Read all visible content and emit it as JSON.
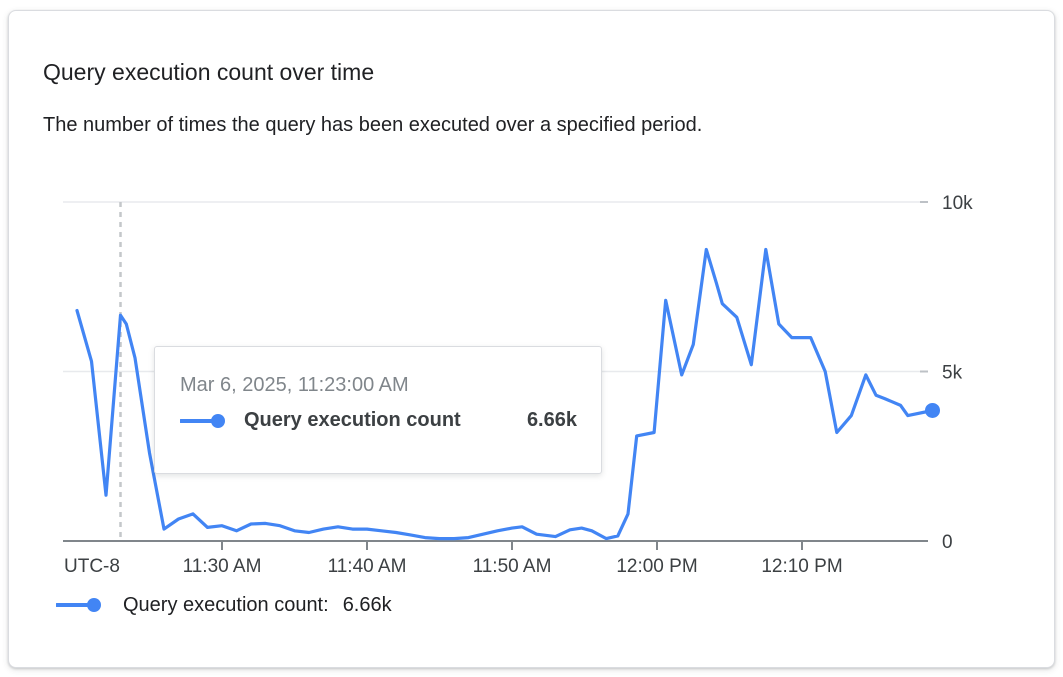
{
  "card": {
    "title": "Query execution count over time",
    "subtitle": "The number of times the query has been executed over a specified period."
  },
  "tooltip": {
    "date": "Mar 6, 2025, 11:23:00 AM",
    "series_label": "Query execution count",
    "value": "6.66k"
  },
  "legend": {
    "label": "Query execution count:",
    "value": "6.66k"
  },
  "colors": {
    "line": "#4285f4",
    "axis": "#80868b",
    "grid": "#e8eaed",
    "grid_end_tick": "#bdc1c6",
    "hover_line": "#c4c7ca",
    "axis_label": "#3c4043",
    "muted_text": "#80868b",
    "text": "#202124",
    "tooltip_border": "#dadce0"
  },
  "chart_data": {
    "type": "line",
    "title": "Query execution count over time",
    "xlabel": "",
    "ylabel": "",
    "x_axis": {
      "timezone_label": "UTC-8",
      "start_time": "11:20 AM",
      "minutes_span": 60,
      "ticks": [
        {
          "label": "11:30 AM",
          "minute": 10
        },
        {
          "label": "11:40 AM",
          "minute": 20
        },
        {
          "label": "11:50 AM",
          "minute": 30
        },
        {
          "label": "12:00 PM",
          "minute": 40
        },
        {
          "label": "12:10 PM",
          "minute": 50
        }
      ]
    },
    "y_axis": {
      "unit": "thousands",
      "max": 10,
      "ticks": [
        {
          "label": "0",
          "value": 0
        },
        {
          "label": "5k",
          "value": 5
        },
        {
          "label": "10k",
          "value": 10
        }
      ]
    },
    "grid": true,
    "legend_position": "bottom-left",
    "hover": {
      "minute": 3,
      "time": "Mar 6, 2025, 11:23:00 AM",
      "value_k": 6.66
    },
    "series": [
      {
        "name": "Query execution count",
        "color": "#4285f4",
        "end_dot": true,
        "points_minutes_vs_k": [
          [
            0,
            6.8
          ],
          [
            1,
            5.3
          ],
          [
            2,
            1.35
          ],
          [
            3,
            6.66
          ],
          [
            3.4,
            6.4
          ],
          [
            4,
            5.4
          ],
          [
            5,
            2.6
          ],
          [
            6,
            0.35
          ],
          [
            7,
            0.65
          ],
          [
            8,
            0.8
          ],
          [
            9,
            0.4
          ],
          [
            10,
            0.45
          ],
          [
            11,
            0.3
          ],
          [
            12,
            0.5
          ],
          [
            13,
            0.52
          ],
          [
            14,
            0.45
          ],
          [
            15,
            0.3
          ],
          [
            16,
            0.25
          ],
          [
            17,
            0.35
          ],
          [
            18,
            0.42
          ],
          [
            19,
            0.35
          ],
          [
            20,
            0.35
          ],
          [
            21,
            0.3
          ],
          [
            22,
            0.25
          ],
          [
            23,
            0.18
          ],
          [
            24,
            0.1
          ],
          [
            25,
            0.07
          ],
          [
            26,
            0.07
          ],
          [
            27,
            0.1
          ],
          [
            28,
            0.2
          ],
          [
            29,
            0.3
          ],
          [
            30,
            0.38
          ],
          [
            30.7,
            0.42
          ],
          [
            31.7,
            0.2
          ],
          [
            33,
            0.13
          ],
          [
            34,
            0.33
          ],
          [
            34.8,
            0.38
          ],
          [
            35.5,
            0.3
          ],
          [
            36.5,
            0.07
          ],
          [
            37.3,
            0.15
          ],
          [
            38,
            0.8
          ],
          [
            38.6,
            3.1
          ],
          [
            39.8,
            3.2
          ],
          [
            40.6,
            7.1
          ],
          [
            41.7,
            4.9
          ],
          [
            42.5,
            5.8
          ],
          [
            43.4,
            8.6
          ],
          [
            44.1,
            7.6
          ],
          [
            44.5,
            7.0
          ],
          [
            45.5,
            6.6
          ],
          [
            46.5,
            5.2
          ],
          [
            47.5,
            8.6
          ],
          [
            48.4,
            6.4
          ],
          [
            49.3,
            6.0
          ],
          [
            50.6,
            6.0
          ],
          [
            51.6,
            5.0
          ],
          [
            52.4,
            3.2
          ],
          [
            53.4,
            3.7
          ],
          [
            54.4,
            4.9
          ],
          [
            55.1,
            4.3
          ],
          [
            55.7,
            4.2
          ],
          [
            56.8,
            4.0
          ],
          [
            57.3,
            3.7
          ],
          [
            59,
            3.85
          ]
        ]
      }
    ]
  }
}
